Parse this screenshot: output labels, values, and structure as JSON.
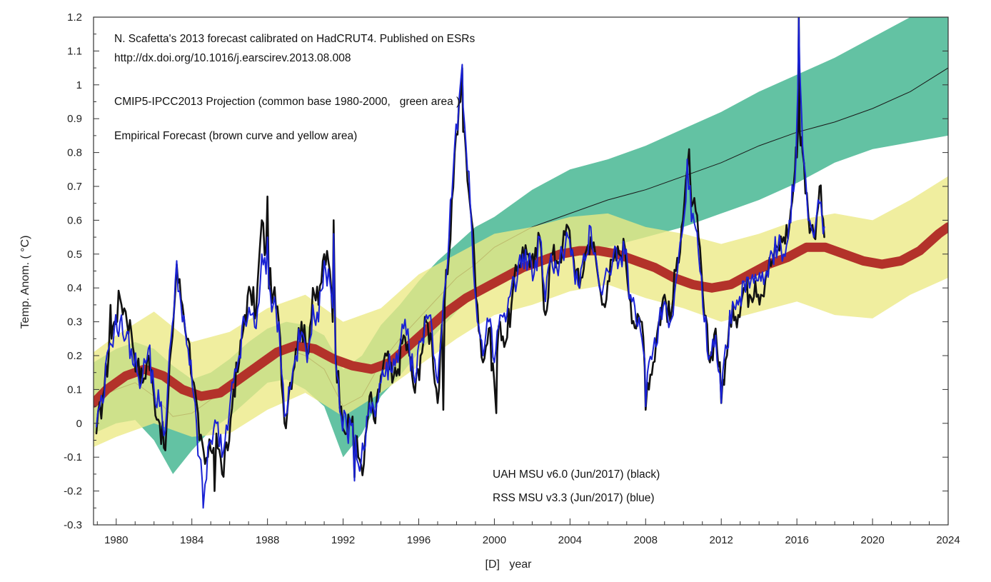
{
  "chart_data": {
    "type": "line",
    "title": "",
    "xlabel": "[D]   year",
    "ylabel": "Temp. Anom. ( °C)",
    "xlim": [
      1978.8,
      2024
    ],
    "ylim": [
      -0.3,
      1.2
    ],
    "grid": false,
    "x_ticks": [
      1980,
      1984,
      1988,
      1992,
      1996,
      2000,
      2004,
      2008,
      2012,
      2016,
      2020,
      2024
    ],
    "x_tick_labels": [
      "1980",
      "1984",
      "1988",
      "1992",
      "1996",
      "2000",
      "2004",
      "2008",
      "2012",
      "2016",
      "2020",
      "2024"
    ],
    "y_ticks": [
      -0.3,
      -0.2,
      -0.1,
      0,
      0.1,
      0.2,
      0.3,
      0.4,
      0.5,
      0.6,
      0.7,
      0.8,
      0.9,
      1,
      1.1,
      1.2
    ],
    "y_tick_labels": [
      "-0.3",
      "-0.2",
      "-0.1",
      "0",
      "0.1",
      "0.2",
      "0.3",
      "0.4",
      "0.5",
      "0.6",
      "0.7",
      "0.8",
      "0.9",
      "1",
      "1.1",
      "1.2"
    ],
    "annotations": [
      "N. Scafetta's 2013 forecast calibrated on HadCRUT4. Published on ESRs",
      "http://dx.doi.org/10.1016/j.earscirev.2013.08.008",
      "CMIP5-IPCC2013 Projection (common base 1980-2000,   green area )",
      "Empirical Forecast (brown curve and yellow area)",
      "UAH MSU v6.0 (Jun/2017) (black)",
      "RSS MSU v3.3 (Jun/2017) (blue)"
    ],
    "series": [
      {
        "name": "CMIP5-IPCC2013 Projection",
        "kind": "band",
        "color": "#5bbf9e",
        "x": [
          1978.8,
          1980,
          1981,
          1982,
          1983,
          1984,
          1985,
          1986,
          1987,
          1988,
          1989,
          1990,
          1991,
          1992,
          1993,
          1994,
          1995,
          1996,
          1997,
          1998,
          1999,
          2000,
          2002,
          2004,
          2006,
          2008,
          2010,
          2012,
          2014,
          2016,
          2018,
          2020,
          2022,
          2024
        ],
        "upper": [
          0.18,
          0.22,
          0.24,
          0.22,
          0.17,
          0.13,
          0.15,
          0.19,
          0.24,
          0.28,
          0.3,
          0.29,
          0.26,
          0.16,
          0.2,
          0.29,
          0.35,
          0.42,
          0.48,
          0.53,
          0.58,
          0.61,
          0.69,
          0.75,
          0.78,
          0.82,
          0.87,
          0.92,
          0.98,
          1.03,
          1.08,
          1.14,
          1.2,
          1.24
        ],
        "lower": [
          -0.03,
          0.0,
          0.01,
          -0.05,
          -0.15,
          -0.08,
          -0.02,
          0.02,
          0.07,
          0.12,
          0.13,
          0.1,
          0.05,
          -0.1,
          -0.03,
          0.08,
          0.14,
          0.21,
          0.27,
          0.33,
          0.38,
          0.42,
          0.46,
          0.5,
          0.52,
          0.55,
          0.58,
          0.62,
          0.66,
          0.71,
          0.77,
          0.81,
          0.83,
          0.85
        ],
        "mean": [
          0.07,
          0.1,
          0.12,
          0.08,
          0.02,
          0.03,
          0.07,
          0.1,
          0.16,
          0.2,
          0.22,
          0.2,
          0.16,
          0.05,
          0.08,
          0.18,
          0.25,
          0.31,
          0.37,
          0.43,
          0.47,
          0.52,
          0.58,
          0.62,
          0.66,
          0.69,
          0.73,
          0.77,
          0.82,
          0.86,
          0.89,
          0.93,
          0.98,
          1.05
        ]
      },
      {
        "name": "Empirical Forecast",
        "kind": "band",
        "color": "#ece984",
        "x": [
          1978.8,
          1980,
          1982,
          1984,
          1986,
          1988,
          1990,
          1992,
          1994,
          1996,
          1998,
          2000,
          2002,
          2004,
          2006,
          2008,
          2010,
          2012,
          2014,
          2016,
          2018,
          2020,
          2022,
          2024
        ],
        "upper": [
          0.21,
          0.26,
          0.33,
          0.24,
          0.27,
          0.34,
          0.38,
          0.3,
          0.34,
          0.44,
          0.5,
          0.56,
          0.58,
          0.61,
          0.62,
          0.58,
          0.56,
          0.53,
          0.56,
          0.6,
          0.62,
          0.6,
          0.66,
          0.73
        ],
        "lower": [
          -0.07,
          -0.04,
          0.0,
          -0.04,
          -0.03,
          0.04,
          0.09,
          0.02,
          0.09,
          0.17,
          0.25,
          0.32,
          0.35,
          0.39,
          0.41,
          0.37,
          0.34,
          0.3,
          0.33,
          0.36,
          0.32,
          0.31,
          0.38,
          0.43
        ]
      },
      {
        "name": "Empirical Forecast",
        "kind": "line",
        "color": "#b3322a",
        "x": [
          1978.8,
          1979.5,
          1980.5,
          1981.5,
          1982.5,
          1983.5,
          1984.5,
          1985.5,
          1986.5,
          1987.5,
          1988.5,
          1989.5,
          1990.5,
          1991.5,
          1992.5,
          1993.5,
          1994.5,
          1995.5,
          1996.5,
          1997.5,
          1998.5,
          1999.5,
          2000.5,
          2001.5,
          2002.5,
          2003.5,
          2004.5,
          2005.5,
          2006.5,
          2007.5,
          2008.5,
          2009.5,
          2010.5,
          2011.5,
          2012.5,
          2013.5,
          2014.5,
          2015.5,
          2016.5,
          2017.5,
          2018.5,
          2019.5,
          2020.5,
          2021.5,
          2022.5,
          2023.5,
          2024
        ],
        "values": [
          0.06,
          0.1,
          0.14,
          0.16,
          0.14,
          0.1,
          0.08,
          0.09,
          0.13,
          0.17,
          0.21,
          0.23,
          0.22,
          0.19,
          0.17,
          0.16,
          0.18,
          0.23,
          0.28,
          0.33,
          0.37,
          0.4,
          0.43,
          0.46,
          0.48,
          0.5,
          0.51,
          0.51,
          0.5,
          0.48,
          0.46,
          0.43,
          0.41,
          0.4,
          0.41,
          0.44,
          0.47,
          0.49,
          0.52,
          0.52,
          0.5,
          0.48,
          0.47,
          0.48,
          0.51,
          0.56,
          0.58
        ]
      },
      {
        "name": "UAH MSU v6.0 (Jun/2017)",
        "kind": "line",
        "color": "#111111",
        "x": [
          1978.95,
          1979.3,
          1979.6,
          1979.9,
          1980.2,
          1980.5,
          1980.8,
          1981.1,
          1981.4,
          1981.7,
          1982.0,
          1982.3,
          1982.6,
          1982.9,
          1983.2,
          1983.5,
          1983.8,
          1984.1,
          1984.4,
          1984.7,
          1985.0,
          1985.3,
          1985.6,
          1985.9,
          1986.2,
          1986.5,
          1986.8,
          1987.1,
          1987.4,
          1987.7,
          1988.0,
          1988.3,
          1988.6,
          1988.9,
          1989.2,
          1989.5,
          1989.8,
          1990.1,
          1990.4,
          1990.7,
          1991.0,
          1991.3,
          1991.6,
          1991.9,
          1992.2,
          1992.5,
          1992.8,
          1993.1,
          1993.4,
          1993.7,
          1994.0,
          1994.3,
          1994.6,
          1994.9,
          1995.2,
          1995.5,
          1995.8,
          1996.1,
          1996.4,
          1996.7,
          1997.0,
          1997.3,
          1997.6,
          1997.9,
          1998.2,
          1998.5,
          1998.8,
          1999.1,
          1999.4,
          1999.7,
          2000.0,
          2000.3,
          2000.6,
          2000.9,
          2001.2,
          2001.5,
          2001.8,
          2002.1,
          2002.4,
          2002.7,
          2003.0,
          2003.3,
          2003.6,
          2003.9,
          2004.2,
          2004.5,
          2004.8,
          2005.1,
          2005.4,
          2005.7,
          2006.0,
          2006.3,
          2006.6,
          2006.9,
          2007.2,
          2007.5,
          2007.8,
          2008.1,
          2008.4,
          2008.7,
          2009.0,
          2009.3,
          2009.6,
          2009.9,
          2010.2,
          2010.5,
          2010.8,
          2011.1,
          2011.4,
          2011.7,
          2012.0,
          2012.3,
          2012.6,
          2012.9,
          2013.2,
          2013.5,
          2013.8,
          2014.1,
          2014.4,
          2014.7,
          2015.0,
          2015.3,
          2015.6,
          2015.9,
          2016.1,
          2016.3,
          2016.6,
          2016.9,
          2017.2,
          2017.45
        ],
        "values": [
          -0.03,
          0.08,
          0.2,
          0.3,
          0.37,
          0.33,
          0.27,
          0.17,
          0.12,
          0.2,
          0.08,
          0.0,
          -0.08,
          0.22,
          0.45,
          0.35,
          0.25,
          0.12,
          -0.05,
          -0.12,
          -0.08,
          -0.03,
          -0.15,
          -0.08,
          0.1,
          0.18,
          0.32,
          0.39,
          0.33,
          0.6,
          0.45,
          0.38,
          0.3,
          0.0,
          0.12,
          0.22,
          0.3,
          0.2,
          0.4,
          0.35,
          0.5,
          0.45,
          0.2,
          0.05,
          -0.03,
          0.02,
          -0.1,
          -0.12,
          0.08,
          0.0,
          0.14,
          0.2,
          0.12,
          0.16,
          0.26,
          0.2,
          0.09,
          0.2,
          0.3,
          0.24,
          0.06,
          0.32,
          0.5,
          0.8,
          0.95,
          0.8,
          0.6,
          0.35,
          0.18,
          0.28,
          0.12,
          0.3,
          0.24,
          0.35,
          0.45,
          0.52,
          0.5,
          0.46,
          0.55,
          0.32,
          0.5,
          0.48,
          0.52,
          0.58,
          0.48,
          0.4,
          0.5,
          0.55,
          0.47,
          0.35,
          0.42,
          0.48,
          0.5,
          0.52,
          0.36,
          0.28,
          0.3,
          0.12,
          0.18,
          0.3,
          0.38,
          0.3,
          0.45,
          0.58,
          0.75,
          0.65,
          0.55,
          0.32,
          0.18,
          0.28,
          0.1,
          0.2,
          0.35,
          0.32,
          0.4,
          0.38,
          0.42,
          0.38,
          0.45,
          0.48,
          0.52,
          0.55,
          0.58,
          0.75,
          0.9,
          0.8,
          0.62,
          0.55,
          0.7,
          0.55
        ],
        "peaks": [
          [
            1979.7,
            0.35
          ],
          [
            1983.2,
            0.47
          ],
          [
            1988.0,
            0.67
          ],
          [
            1991.5,
            0.6
          ],
          [
            1998.3,
            1.05
          ],
          [
            2010.3,
            0.81
          ],
          [
            2016.1,
            1.2
          ]
        ],
        "troughs": [
          [
            1985.2,
            -0.2
          ],
          [
            1992.6,
            -0.16
          ],
          [
            1997.3,
            0.04
          ],
          [
            2000.1,
            0.03
          ],
          [
            2008.0,
            0.04
          ],
          [
            2012.0,
            0.06
          ]
        ]
      },
      {
        "name": "RSS MSU v3.3 (Jun/2017)",
        "kind": "line",
        "color": "#1a22d4",
        "x": [
          1978.95,
          1979.3,
          1979.6,
          1979.9,
          1980.2,
          1980.5,
          1980.8,
          1981.1,
          1981.4,
          1981.7,
          1982.0,
          1982.3,
          1982.6,
          1982.9,
          1983.2,
          1983.5,
          1983.8,
          1984.1,
          1984.4,
          1984.7,
          1985.0,
          1985.3,
          1985.6,
          1985.9,
          1986.2,
          1986.5,
          1986.8,
          1987.1,
          1987.4,
          1987.7,
          1988.0,
          1988.3,
          1988.6,
          1988.9,
          1989.2,
          1989.5,
          1989.8,
          1990.1,
          1990.4,
          1990.7,
          1991.0,
          1991.3,
          1991.6,
          1991.9,
          1992.2,
          1992.5,
          1992.8,
          1993.1,
          1993.4,
          1993.7,
          1994.0,
          1994.3,
          1994.6,
          1994.9,
          1995.2,
          1995.5,
          1995.8,
          1996.1,
          1996.4,
          1996.7,
          1997.0,
          1997.3,
          1997.6,
          1997.9,
          1998.2,
          1998.5,
          1998.8,
          1999.1,
          1999.4,
          1999.7,
          2000.0,
          2000.3,
          2000.6,
          2000.9,
          2001.2,
          2001.5,
          2001.8,
          2002.1,
          2002.4,
          2002.7,
          2003.0,
          2003.3,
          2003.6,
          2003.9,
          2004.2,
          2004.5,
          2004.8,
          2005.1,
          2005.4,
          2005.7,
          2006.0,
          2006.3,
          2006.6,
          2006.9,
          2007.2,
          2007.5,
          2007.8,
          2008.1,
          2008.4,
          2008.7,
          2009.0,
          2009.3,
          2009.6,
          2009.9,
          2010.2,
          2010.5,
          2010.8,
          2011.1,
          2011.4,
          2011.7,
          2012.0,
          2012.3,
          2012.6,
          2012.9,
          2013.2,
          2013.5,
          2013.8,
          2014.1,
          2014.4,
          2014.7,
          2015.0,
          2015.3,
          2015.6,
          2015.9,
          2016.1,
          2016.3,
          2016.6,
          2016.9,
          2017.2,
          2017.45
        ],
        "values": [
          -0.01,
          0.06,
          0.22,
          0.28,
          0.3,
          0.25,
          0.22,
          0.15,
          0.14,
          0.22,
          0.1,
          0.05,
          -0.02,
          0.25,
          0.47,
          0.3,
          0.22,
          0.08,
          -0.1,
          -0.18,
          -0.05,
          0.0,
          -0.1,
          -0.02,
          0.12,
          0.2,
          0.3,
          0.32,
          0.28,
          0.5,
          0.4,
          0.35,
          0.3,
          0.02,
          0.1,
          0.2,
          0.27,
          0.18,
          0.35,
          0.3,
          0.48,
          0.42,
          0.18,
          0.02,
          -0.02,
          0.0,
          -0.12,
          -0.08,
          0.06,
          0.02,
          0.12,
          0.18,
          0.15,
          0.18,
          0.28,
          0.22,
          0.12,
          0.24,
          0.32,
          0.28,
          0.12,
          0.36,
          0.55,
          0.82,
          1.0,
          0.82,
          0.58,
          0.3,
          0.2,
          0.3,
          0.18,
          0.32,
          0.3,
          0.4,
          0.42,
          0.5,
          0.48,
          0.44,
          0.55,
          0.36,
          0.5,
          0.46,
          0.5,
          0.55,
          0.46,
          0.4,
          0.48,
          0.58,
          0.48,
          0.38,
          0.45,
          0.5,
          0.48,
          0.5,
          0.38,
          0.3,
          0.25,
          0.15,
          0.22,
          0.3,
          0.36,
          0.3,
          0.42,
          0.55,
          0.7,
          0.62,
          0.5,
          0.3,
          0.2,
          0.26,
          0.12,
          0.22,
          0.36,
          0.35,
          0.42,
          0.4,
          0.44,
          0.42,
          0.45,
          0.5,
          0.52,
          0.5,
          0.6,
          0.72,
          1.08,
          0.82,
          0.6,
          0.55,
          0.65,
          0.58
        ],
        "peaks": [
          [
            1983.2,
            0.48
          ],
          [
            1988.0,
            0.55
          ],
          [
            1991.5,
            0.56
          ],
          [
            1998.3,
            1.06
          ],
          [
            2010.2,
            0.78
          ],
          [
            2016.1,
            1.2
          ]
        ],
        "troughs": [
          [
            1984.6,
            -0.25
          ],
          [
            1992.6,
            -0.17
          ],
          [
            2008.0,
            0.05
          ],
          [
            2012.0,
            0.06
          ]
        ]
      }
    ]
  }
}
